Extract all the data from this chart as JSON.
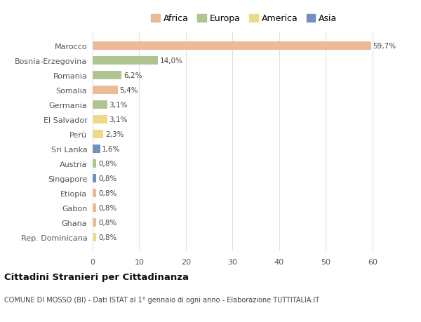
{
  "countries": [
    "Marocco",
    "Bosnia-Erzegovina",
    "Romania",
    "Somalia",
    "Germania",
    "El Salvador",
    "Perù",
    "Sri Lanka",
    "Austria",
    "Singapore",
    "Etiopia",
    "Gabon",
    "Ghana",
    "Rep. Dominicana"
  ],
  "values": [
    59.7,
    14.0,
    6.2,
    5.4,
    3.1,
    3.1,
    2.3,
    1.6,
    0.8,
    0.8,
    0.8,
    0.8,
    0.8,
    0.8
  ],
  "labels": [
    "59,7%",
    "14,0%",
    "6,2%",
    "5,4%",
    "3,1%",
    "3,1%",
    "2,3%",
    "1,6%",
    "0,8%",
    "0,8%",
    "0,8%",
    "0,8%",
    "0,8%",
    "0,8%"
  ],
  "continents": [
    "Africa",
    "Europa",
    "Europa",
    "Africa",
    "Europa",
    "America",
    "America",
    "Asia",
    "Europa",
    "Asia",
    "Africa",
    "Africa",
    "Africa",
    "America"
  ],
  "continent_colors": {
    "Africa": "#EDBA96",
    "Europa": "#B0C491",
    "America": "#EDD98A",
    "Asia": "#7090C0"
  },
  "legend_order": [
    "Africa",
    "Europa",
    "America",
    "Asia"
  ],
  "title": "Cittadini Stranieri per Cittadinanza",
  "subtitle": "COMUNE DI MOSSO (BI) - Dati ISTAT al 1° gennaio di ogni anno - Elaborazione TUTTITALIA.IT",
  "xlim": [
    0,
    65
  ],
  "xticks": [
    0,
    10,
    20,
    30,
    40,
    50,
    60
  ],
  "background_color": "#FFFFFF",
  "grid_color": "#E0E0E0"
}
